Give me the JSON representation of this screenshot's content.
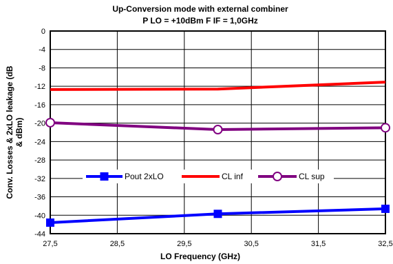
{
  "chart_data": {
    "type": "line",
    "title": "Up-Conversion mode with external combiner",
    "subtitle": "P LO = +10dBm F IF = 1,0GHz",
    "xlabel": "LO Frequency (GHz)",
    "ylabel_line1": "Conv. Losses & 2xLO leakage (dB",
    "ylabel_line2": "& dBm)",
    "xlim": [
      27.5,
      32.5
    ],
    "ylim": [
      -44,
      0
    ],
    "x_ticks": [
      27.5,
      28.5,
      29.5,
      30.5,
      31.5,
      32.5
    ],
    "x_tick_labels": [
      "27,5",
      "28,5",
      "29,5",
      "30,5",
      "31,5",
      "32,5"
    ],
    "y_ticks": [
      0,
      -4,
      -8,
      -12,
      -16,
      -20,
      -24,
      -28,
      -32,
      -36,
      -40,
      -44
    ],
    "y_tick_labels": [
      "0",
      "-4",
      "-8",
      "-12",
      "-16",
      "-20",
      "-24",
      "-28",
      "-32",
      "-36",
      "-40",
      "-44"
    ],
    "grid": true,
    "legend_position": "inside-lower-middle",
    "series": [
      {
        "name": "Pout 2xLO",
        "color": "#0000ff",
        "marker": "square",
        "x": [
          27.5,
          30.0,
          32.5
        ],
        "y": [
          -41.6,
          -39.7,
          -38.6
        ]
      },
      {
        "name": "CL inf",
        "color": "#ff0000",
        "marker": "none",
        "x": [
          27.5,
          30.0,
          32.5
        ],
        "y": [
          -12.7,
          -12.6,
          -11.1
        ]
      },
      {
        "name": "CL sup",
        "color": "#800080",
        "marker": "circle",
        "x": [
          27.5,
          30.0,
          32.5
        ],
        "y": [
          -19.9,
          -21.4,
          -21.0
        ]
      }
    ]
  }
}
